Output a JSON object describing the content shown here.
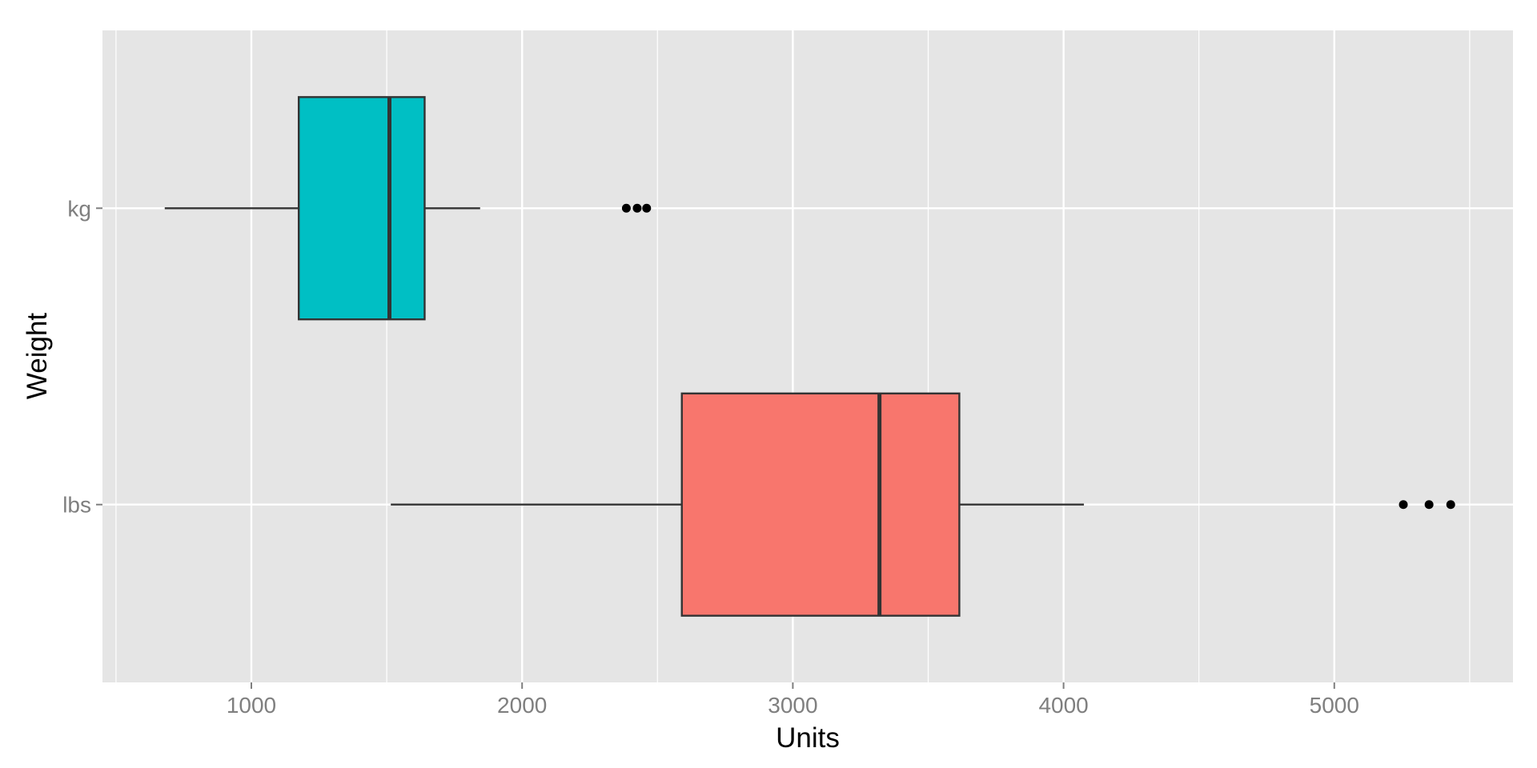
{
  "chart_data": {
    "type": "boxplot",
    "orientation": "horizontal",
    "xlabel": "Units",
    "ylabel": "Weight",
    "xlim": [
      450,
      5660
    ],
    "x_ticks": [
      1000,
      2000,
      3000,
      4000,
      5000
    ],
    "grid": true,
    "legend": "none",
    "panel_background": "#e5e5e5",
    "grid_color": "#ffffff",
    "box_outline_color": "#333333",
    "categories": [
      "kg",
      "lbs"
    ],
    "boxes": [
      {
        "category": "kg",
        "fill": "#00bfc4",
        "whisker_low": 680,
        "q1": 1175,
        "median": 1510,
        "q3": 1640,
        "whisker_high": 1845,
        "outliers": [
          2385,
          2425,
          2460
        ]
      },
      {
        "category": "lbs",
        "fill": "#f8766d",
        "whisker_low": 1515,
        "q1": 2590,
        "median": 3320,
        "q3": 3615,
        "whisker_high": 4075,
        "outliers": [
          5255,
          5350,
          5430
        ]
      }
    ]
  }
}
